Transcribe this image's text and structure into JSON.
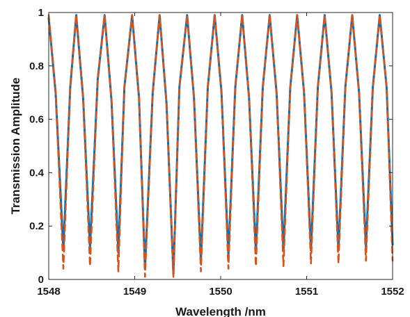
{
  "chart_data": {
    "type": "line",
    "title": "",
    "xlabel": "Wavelength /nm",
    "ylabel": "Transmission Amplitude",
    "xlim": [
      1548,
      1552
    ],
    "ylim": [
      0,
      1
    ],
    "x_ticks": [
      1548,
      1549,
      1550,
      1551,
      1552
    ],
    "x_tick_labels": [
      "1548",
      "1549",
      "1550",
      "1551",
      "1552"
    ],
    "y_ticks": [
      0,
      0.2,
      0.4,
      0.6,
      0.8,
      1
    ],
    "y_tick_labels": [
      "0",
      "0.2",
      "0.4",
      "0.6",
      "0.8",
      "1"
    ],
    "grid": false,
    "series": [
      {
        "color": "#0072BD",
        "style": "solid",
        "x": [
          1548.0,
          1548.08,
          1548.17,
          1548.25,
          1548.32,
          1548.4,
          1548.48,
          1548.57,
          1548.65,
          1548.73,
          1548.81,
          1548.88,
          1548.97,
          1549.05,
          1549.12,
          1549.21,
          1549.29,
          1549.37,
          1549.45,
          1549.52,
          1549.61,
          1549.69,
          1549.77,
          1549.85,
          1549.93,
          1550.01,
          1550.09,
          1550.17,
          1550.25,
          1550.33,
          1550.41,
          1550.49,
          1550.57,
          1550.65,
          1550.73,
          1550.81,
          1550.89,
          1550.97,
          1551.05,
          1551.13,
          1551.21,
          1551.29,
          1551.37,
          1551.45,
          1551.53,
          1551.61,
          1551.69,
          1551.77,
          1551.85,
          1551.93,
          1552.0
        ],
        "y": [
          0.98,
          0.7,
          0.11,
          0.72,
          0.99,
          0.68,
          0.12,
          0.75,
          0.99,
          0.67,
          0.1,
          0.72,
          0.99,
          0.68,
          0.04,
          0.7,
          0.99,
          0.66,
          0.02,
          0.72,
          0.99,
          0.68,
          0.07,
          0.72,
          0.99,
          0.7,
          0.09,
          0.72,
          0.99,
          0.68,
          0.1,
          0.72,
          0.99,
          0.7,
          0.11,
          0.72,
          0.99,
          0.7,
          0.11,
          0.72,
          0.99,
          0.7,
          0.11,
          0.72,
          0.99,
          0.7,
          0.12,
          0.72,
          0.99,
          0.72,
          0.13
        ]
      },
      {
        "color": "#D95319",
        "style": "dashed",
        "x": [
          1548.0,
          1548.08,
          1548.17,
          1548.25,
          1548.32,
          1548.4,
          1548.48,
          1548.57,
          1548.65,
          1548.73,
          1548.81,
          1548.88,
          1548.97,
          1549.05,
          1549.12,
          1549.21,
          1549.29,
          1549.37,
          1549.45,
          1549.52,
          1549.61,
          1549.69,
          1549.77,
          1549.85,
          1549.93,
          1550.01,
          1550.09,
          1550.17,
          1550.25,
          1550.33,
          1550.41,
          1550.49,
          1550.57,
          1550.65,
          1550.73,
          1550.81,
          1550.89,
          1550.97,
          1551.05,
          1551.13,
          1551.21,
          1551.29,
          1551.37,
          1551.45,
          1551.53,
          1551.61,
          1551.69,
          1551.77,
          1551.85,
          1551.93,
          1552.0
        ],
        "y": [
          0.99,
          0.7,
          0.04,
          0.72,
          0.99,
          0.68,
          0.05,
          0.75,
          0.99,
          0.67,
          0.03,
          0.72,
          0.99,
          0.68,
          0.01,
          0.7,
          0.99,
          0.66,
          0.01,
          0.72,
          0.99,
          0.68,
          0.03,
          0.72,
          0.99,
          0.7,
          0.04,
          0.72,
          0.99,
          0.68,
          0.05,
          0.72,
          0.99,
          0.7,
          0.05,
          0.72,
          0.99,
          0.7,
          0.06,
          0.72,
          0.99,
          0.7,
          0.06,
          0.72,
          0.99,
          0.7,
          0.07,
          0.72,
          0.99,
          0.72,
          0.07
        ]
      }
    ]
  }
}
